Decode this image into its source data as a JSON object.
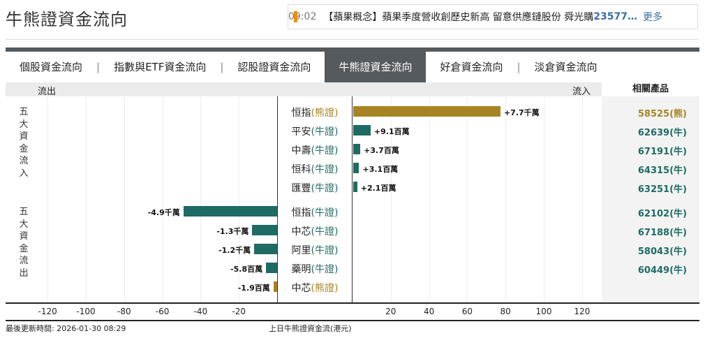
{
  "title": "牛熊證資金流向",
  "ticker": {
    "time": "09:02",
    "text": "【蘋果概念】蘋果季度營收創歷史新高 留意供應鏈股份 舜光購 ",
    "code": "23577…",
    "more": "更多",
    "accent": "#f08c00"
  },
  "tabs": [
    {
      "label": "個股資金流向"
    },
    {
      "label": "指數與ETF資金流向"
    },
    {
      "label": "認股證資金流向"
    },
    {
      "label": "牛熊證資金流向",
      "active": true
    },
    {
      "label": "好倉資金流向"
    },
    {
      "label": "淡倉資金流向"
    }
  ],
  "header": {
    "outflow": "流出",
    "inflow": "流入",
    "related": "相關產品"
  },
  "groups": {
    "inflow": "五大資金流入",
    "outflow": "五大資金流出"
  },
  "colors": {
    "bull": "#1e6b63",
    "bear": "#a88324"
  },
  "chart_data": {
    "type": "bar",
    "orientation": "horizontal-diverging",
    "unit": "百萬",
    "xlim": [
      -120,
      120
    ],
    "ticks": [
      -120,
      -100,
      -80,
      -60,
      -40,
      -20,
      20,
      40,
      60,
      80,
      100,
      120
    ],
    "caption": "上日牛熊證資金流(港元)",
    "rows": [
      {
        "name": "恒指",
        "type": "(熊證)",
        "kind": "bear",
        "value": 77,
        "label": "+7.7千萬",
        "product": "58525(熊)"
      },
      {
        "name": "平安",
        "type": "(牛證)",
        "kind": "bull",
        "value": 9.1,
        "label": "+9.1百萬",
        "product": "62639(牛)"
      },
      {
        "name": "中壽",
        "type": "(牛證)",
        "kind": "bull",
        "value": 3.7,
        "label": "+3.7百萬",
        "product": "67191(牛)"
      },
      {
        "name": "恒科",
        "type": "(牛證)",
        "kind": "bull",
        "value": 3.1,
        "label": "+3.1百萬",
        "product": "64315(牛)"
      },
      {
        "name": "匯豐",
        "type": "(牛證)",
        "kind": "bull",
        "value": 2.1,
        "label": "+2.1百萬",
        "product": "63251(牛)"
      },
      {
        "name": "恒指",
        "type": "(牛證)",
        "kind": "bull",
        "value": -49,
        "label": "-4.9千萬",
        "product": "62102(牛)"
      },
      {
        "name": "中芯",
        "type": "(牛證)",
        "kind": "bull",
        "value": -13,
        "label": "-1.3千萬",
        "product": "67188(牛)"
      },
      {
        "name": "阿里",
        "type": "(牛證)",
        "kind": "bull",
        "value": -12,
        "label": "-1.2千萬",
        "product": "58043(牛)"
      },
      {
        "name": "藥明",
        "type": "(牛證)",
        "kind": "bull",
        "value": -5.8,
        "label": "-5.8百萬",
        "product": "60449(牛)"
      },
      {
        "name": "中芯",
        "type": "(熊證)",
        "kind": "bear",
        "value": -1.9,
        "label": "-1.9百萬",
        "product": ""
      }
    ]
  },
  "footer": {
    "updated": "最後更新時間: 2026-01-30 08:29"
  }
}
